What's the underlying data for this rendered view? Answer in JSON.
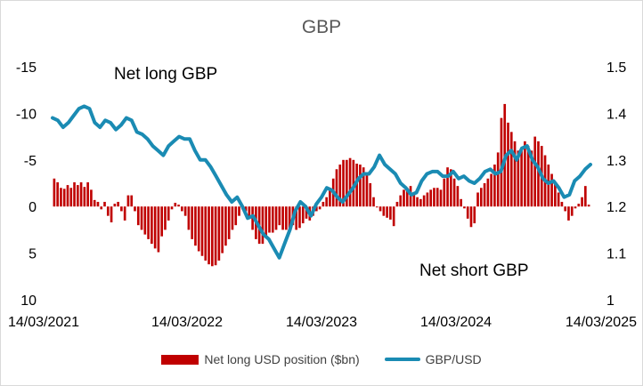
{
  "chart_data": {
    "type": "bar+line",
    "title": "GBP",
    "x_tick_labels": [
      "14/03/2021",
      "14/03/2022",
      "14/03/2023",
      "14/03/2024",
      "14/03/2025"
    ],
    "left_axis": {
      "tick_labels": [
        "-15",
        "-10",
        "-5",
        "0",
        "5",
        "10"
      ],
      "range": [
        10,
        -15
      ],
      "inverted": true
    },
    "right_axis": {
      "tick_labels": [
        "1.5",
        "1.4",
        "1.3",
        "1.2",
        "1.1",
        "1"
      ],
      "range": [
        1.0,
        1.5
      ]
    },
    "annotations": {
      "net_long": "Net long GBP",
      "net_short": "Net short GBP"
    },
    "grid": false,
    "legend_position": "bottom",
    "colors": {
      "bars": "#c00000",
      "line": "#1a8bb3"
    },
    "series": [
      {
        "name": "Net long USD position ($bn)",
        "kind": "bar",
        "axis": "left",
        "values": [
          -3.0,
          -2.6,
          -2.0,
          -1.9,
          -2.3,
          -2.0,
          -2.6,
          -2.3,
          -2.6,
          -2.1,
          -2.6,
          -1.8,
          -0.7,
          -0.5,
          0.3,
          -0.5,
          1.0,
          1.7,
          -0.3,
          -0.5,
          0.5,
          1.5,
          -1.2,
          -1.2,
          0.5,
          2.0,
          2.5,
          3.0,
          3.5,
          4.0,
          4.5,
          4.9,
          3.2,
          2.5,
          1.5,
          0.3,
          -0.4,
          -0.2,
          0.5,
          1.0,
          2.5,
          3.5,
          4.2,
          4.8,
          5.3,
          5.8,
          6.2,
          6.4,
          6.3,
          5.8,
          5.0,
          4.2,
          3.5,
          2.5,
          2.0,
          1.0,
          0.3,
          0.5,
          1.3,
          2.5,
          3.5,
          4.0,
          4.0,
          3.3,
          2.8,
          2.8,
          2.5,
          2.0,
          2.5,
          2.5,
          2.3,
          2.0,
          2.5,
          2.3,
          1.8,
          1.3,
          1.5,
          1.0,
          0.5,
          0.3,
          -0.5,
          -1.0,
          -2.0,
          -3.0,
          -4.0,
          -4.5,
          -5.0,
          -5.0,
          -5.2,
          -5.0,
          -4.6,
          -4.5,
          -4.2,
          -3.5,
          -2.5,
          -1.0,
          0.1,
          0.5,
          1.0,
          1.2,
          1.4,
          2.1,
          -0.5,
          -1.2,
          -1.8,
          -2.0,
          -2.2,
          -1.5,
          -1.0,
          -0.8,
          -1.2,
          -1.5,
          -1.8,
          -2.0,
          -2.0,
          -1.8,
          -3.0,
          -4.2,
          -4.0,
          -3.0,
          -2.2,
          -0.8,
          0.2,
          1.3,
          2.2,
          1.8,
          -1.5,
          -2.0,
          -2.5,
          -3.0,
          -3.5,
          -4.5,
          -5.8,
          -9.5,
          -11.0,
          -9.0,
          -8.0,
          -7.0,
          -6.0,
          -6.0,
          -7.0,
          -6.5,
          -6.0,
          -7.5,
          -7.0,
          -6.5,
          -5.5,
          -4.5,
          -3.5,
          -2.5,
          -1.5,
          -0.5,
          0.5,
          1.5,
          1.0,
          0.2,
          -0.3,
          -1.0,
          -2.2,
          -0.2
        ]
      },
      {
        "name": "GBP/USD",
        "kind": "line",
        "axis": "right",
        "x_range": [
          "14/03/2021",
          "14/03/2025"
        ],
        "y": [
          1.39,
          1.385,
          1.37,
          1.38,
          1.395,
          1.41,
          1.415,
          1.41,
          1.38,
          1.37,
          1.385,
          1.38,
          1.365,
          1.375,
          1.39,
          1.385,
          1.36,
          1.355,
          1.345,
          1.33,
          1.32,
          1.31,
          1.33,
          1.34,
          1.35,
          1.345,
          1.345,
          1.32,
          1.3,
          1.3,
          1.285,
          1.265,
          1.245,
          1.225,
          1.21,
          1.22,
          1.2,
          1.175,
          1.18,
          1.16,
          1.14,
          1.13,
          1.11,
          1.09,
          1.12,
          1.15,
          1.19,
          1.21,
          1.2,
          1.18,
          1.205,
          1.22,
          1.24,
          1.235,
          1.22,
          1.21,
          1.225,
          1.24,
          1.26,
          1.27,
          1.27,
          1.285,
          1.31,
          1.29,
          1.28,
          1.27,
          1.25,
          1.24,
          1.225,
          1.23,
          1.255,
          1.27,
          1.275,
          1.275,
          1.265,
          1.265,
          1.275,
          1.26,
          1.265,
          1.255,
          1.25,
          1.26,
          1.275,
          1.28,
          1.27,
          1.275,
          1.31,
          1.32,
          1.3,
          1.325,
          1.33,
          1.3,
          1.285,
          1.26,
          1.25,
          1.255,
          1.24,
          1.22,
          1.225,
          1.255,
          1.265,
          1.28,
          1.29
        ]
      }
    ]
  }
}
